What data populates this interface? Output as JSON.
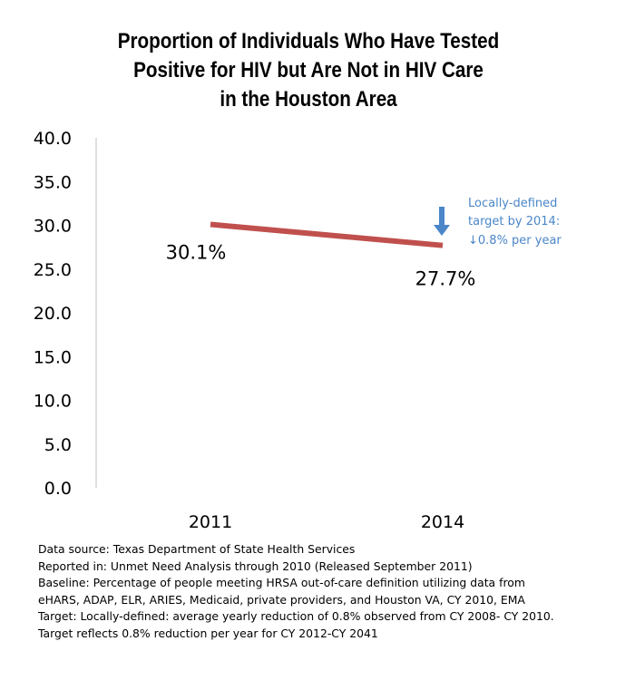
{
  "chart_data": {
    "type": "line",
    "title_lines": [
      "Proportion of Individuals Who Have Tested",
      "Positive for HIV but Are Not in HIV Care",
      "in the Houston Area"
    ],
    "categories": [
      "2011",
      "2014"
    ],
    "series": [
      {
        "values": [
          30.1,
          27.7
        ],
        "data_labels": [
          "30.1%",
          "27.7%"
        ],
        "color": "#c0504d"
      }
    ],
    "ylim": [
      0,
      40
    ],
    "y_ticks": [
      "0.0",
      "5.0",
      "10.0",
      "15.0",
      "20.0",
      "25.0",
      "30.0",
      "35.0",
      "40.0"
    ],
    "grid": false,
    "annotation": {
      "lines": [
        "Locally-defined",
        "target by 2014:",
        "↓0.8% per year"
      ],
      "arrow": "down-arrow-icon",
      "color": "#4a86c8"
    }
  },
  "footnotes": [
    "Data source: Texas Department of State Health Services",
    "Reported in: Unmet Need Analysis through 2010 (Released September 2011)",
    "Baseline: Percentage of people meeting HRSA out-of-care definition utilizing data from",
    "eHARS, ADAP, ELR, ARIES, Medicaid, private providers, and Houston VA, CY 2010, EMA",
    "Target: Locally-defined: average yearly reduction of 0.8% observed from CY 2008- CY 2010.",
    "Target reflects 0.8% reduction per year for CY 2012-CY 2041"
  ]
}
